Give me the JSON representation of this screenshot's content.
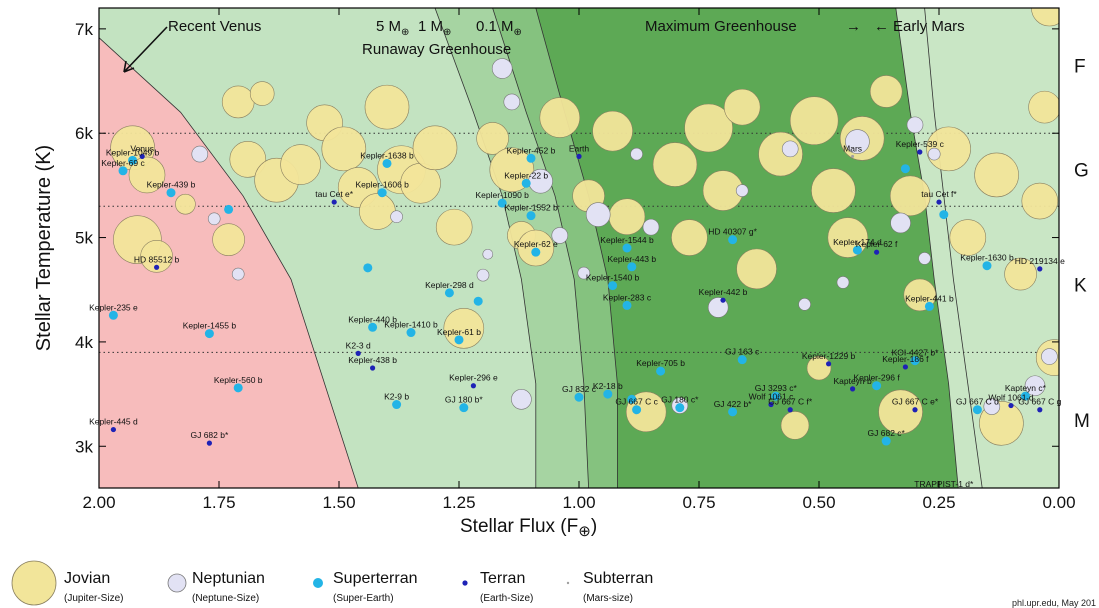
{
  "chart_data": {
    "type": "scatter",
    "xlabel": "Stellar Flux (F",
    "xlabel_symbol": "⊕",
    "ylabel": "Stellar Temperature (K)",
    "xlim": [
      2.0,
      0.0
    ],
    "ylim": [
      2600,
      7200
    ],
    "x_axis_reversed": true,
    "x_ticks": [
      "2.00",
      "1.75",
      "1.50",
      "1.25",
      "1.00",
      "0.75",
      "0.50",
      "0.25",
      "0.00"
    ],
    "y_ticks": [
      "3k",
      "4k",
      "5k",
      "6k",
      "7k"
    ],
    "spectral_classes": [
      {
        "label": "F",
        "temp": 6650
      },
      {
        "label": "G",
        "temp": 5650
      },
      {
        "label": "K",
        "temp": 4550
      },
      {
        "label": "M",
        "temp": 3250
      }
    ],
    "dotted_temperature_lines": [
      6000,
      5300,
      3900
    ],
    "zone_colors": {
      "too_hot": "#f7bcbc",
      "optimistic_inner": "#c3e3c1",
      "band_5M": "#a6d4a2",
      "band_1M": "#85c27f",
      "conservative": "#5da955",
      "maximum_greenhouse": "#c9e6c5",
      "too_cold": "#bbbcf3"
    },
    "zone_annotations": {
      "recent_venus": "Recent Venus",
      "runaway_masses": "5 M",
      "one_m": "1 M",
      "point_one_m": "0.1 M",
      "runaway_greenhouse": "Runaway Greenhouse",
      "maximum_greenhouse": "Maximum Greenhouse",
      "early_mars": "Early Mars",
      "arrow_right": "→",
      "arrow_left": "←",
      "earth_symbol": "⊕"
    },
    "series": [
      {
        "name": "Jovian",
        "sublabel": "(Jupiter-Size)",
        "color": "#f2e59a"
      },
      {
        "name": "Neptunian",
        "sublabel": "(Neptune-Size)",
        "color": "#e2e2f4"
      },
      {
        "name": "Superterran",
        "sublabel": "(Super-Earth)",
        "color": "#23b4e6"
      },
      {
        "name": "Terran",
        "sublabel": "(Earth-Size)",
        "color": "#1e22b6"
      },
      {
        "name": "Subterran",
        "sublabel": "(Mars-size)",
        "color": "#a0a0a0"
      }
    ],
    "labeled_planets": [
      {
        "name": "Venus",
        "x": 1.91,
        "t": 5778,
        "type": "Terran"
      },
      {
        "name": "Kepler-1049 b",
        "x": 1.93,
        "t": 5740,
        "type": "Superterran"
      },
      {
        "name": "Kepler-69 c",
        "x": 1.95,
        "t": 5640,
        "type": "Superterran"
      },
      {
        "name": "Kepler-439 b",
        "x": 1.85,
        "t": 5430,
        "type": "Superterran"
      },
      {
        "name": "HD 85512 b",
        "x": 1.88,
        "t": 4715,
        "type": "Terran"
      },
      {
        "name": "Kepler-235 e",
        "x": 1.97,
        "t": 4255,
        "type": "Superterran"
      },
      {
        "name": "Kepler-1455 b",
        "x": 1.77,
        "t": 4080,
        "type": "Superterran"
      },
      {
        "name": "Kepler-560 b",
        "x": 1.71,
        "t": 3560,
        "type": "Superterran"
      },
      {
        "name": "Kepler-445 d",
        "x": 1.97,
        "t": 3160,
        "type": "Terran"
      },
      {
        "name": "GJ 682 b*",
        "x": 1.77,
        "t": 3030,
        "type": "Terran"
      },
      {
        "name": "tau Cet e*",
        "x": 1.51,
        "t": 5340,
        "type": "Terran"
      },
      {
        "name": "Kepler-1638 b",
        "x": 1.4,
        "t": 5710,
        "type": "Superterran"
      },
      {
        "name": "Kepler-1606 b",
        "x": 1.41,
        "t": 5430,
        "type": "Superterran"
      },
      {
        "name": "Kepler-298 d",
        "x": 1.27,
        "t": 4470,
        "type": "Superterran"
      },
      {
        "name": "Kepler-440 b",
        "x": 1.43,
        "t": 4140,
        "type": "Superterran"
      },
      {
        "name": "Kepler-1410 b",
        "x": 1.35,
        "t": 4090,
        "type": "Superterran"
      },
      {
        "name": "Kepler-61 b",
        "x": 1.25,
        "t": 4020,
        "type": "Superterran"
      },
      {
        "name": "K2-3 d",
        "x": 1.46,
        "t": 3890,
        "type": "Terran"
      },
      {
        "name": "Kepler-438 b",
        "x": 1.43,
        "t": 3750,
        "type": "Terran"
      },
      {
        "name": "K2-9 b",
        "x": 1.38,
        "t": 3400,
        "type": "Superterran"
      },
      {
        "name": "GJ 180 b*",
        "x": 1.24,
        "t": 3370,
        "type": "Superterran"
      },
      {
        "name": "Kepler-296 e",
        "x": 1.22,
        "t": 3580,
        "type": "Terran"
      },
      {
        "name": "Kepler-1090 b",
        "x": 1.16,
        "t": 5330,
        "type": "Superterran"
      },
      {
        "name": "Kepler-452 b",
        "x": 1.1,
        "t": 5760,
        "type": "Superterran"
      },
      {
        "name": "Kepler-22 b",
        "x": 1.11,
        "t": 5520,
        "type": "Superterran"
      },
      {
        "name": "Kepler-1552 b",
        "x": 1.1,
        "t": 5210,
        "type": "Superterran"
      },
      {
        "name": "Earth",
        "x": 1.0,
        "t": 5778,
        "type": "Terran"
      },
      {
        "name": "Kepler-62 e",
        "x": 1.09,
        "t": 4860,
        "type": "Superterran"
      },
      {
        "name": "Kepler-1544 b",
        "x": 0.9,
        "t": 4900,
        "type": "Superterran"
      },
      {
        "name": "Kepler-443 b",
        "x": 0.89,
        "t": 4720,
        "type": "Superterran"
      },
      {
        "name": "Kepler-1540 b",
        "x": 0.93,
        "t": 4540,
        "type": "Superterran"
      },
      {
        "name": "Kepler-283 c",
        "x": 0.9,
        "t": 4350,
        "type": "Superterran"
      },
      {
        "name": "Kepler-705 b",
        "x": 0.83,
        "t": 3720,
        "type": "Superterran"
      },
      {
        "name": "K2-18 b",
        "x": 0.94,
        "t": 3500,
        "type": "Superterran"
      },
      {
        "name": "GJ 832 c",
        "x": 1.0,
        "t": 3470,
        "type": "Superterran"
      },
      {
        "name": "GJ 667 C c",
        "x": 0.88,
        "t": 3350,
        "type": "Superterran"
      },
      {
        "name": "GJ 180 c*",
        "x": 0.79,
        "t": 3370,
        "type": "Superterran"
      },
      {
        "name": "HD 40307 g*",
        "x": 0.68,
        "t": 4980,
        "type": "Superterran"
      },
      {
        "name": "Kepler-442 b",
        "x": 0.7,
        "t": 4400,
        "type": "Terran"
      },
      {
        "name": "GJ 163 c",
        "x": 0.66,
        "t": 3830,
        "type": "Superterran"
      },
      {
        "name": "GJ 422 b*",
        "x": 0.68,
        "t": 3330,
        "type": "Superterran"
      },
      {
        "name": "GJ 3293 c*",
        "x": 0.59,
        "t": 3480,
        "type": "Superterran"
      },
      {
        "name": "Wolf 1061 c",
        "x": 0.6,
        "t": 3400,
        "type": "Terran"
      },
      {
        "name": "GJ 667 C f*",
        "x": 0.56,
        "t": 3350,
        "type": "Terran"
      },
      {
        "name": "Kepler-1229 b",
        "x": 0.48,
        "t": 3790,
        "type": "Terran"
      },
      {
        "name": "Kapteyn b",
        "x": 0.43,
        "t": 3550,
        "type": "Terran"
      },
      {
        "name": "Kepler-296 f",
        "x": 0.38,
        "t": 3580,
        "type": "Superterran"
      },
      {
        "name": "GJ 667 C e*",
        "x": 0.3,
        "t": 3350,
        "type": "Terran"
      },
      {
        "name": "GJ 682 c*",
        "x": 0.36,
        "t": 3050,
        "type": "Superterran"
      },
      {
        "name": "Kepler-186 f",
        "x": 0.32,
        "t": 3760,
        "type": "Terran"
      },
      {
        "name": "KOI-4427 b*",
        "x": 0.3,
        "t": 3820,
        "type": "Superterran"
      },
      {
        "name": "TRAPPIST-1 d*",
        "x": 0.24,
        "t": 2560,
        "type": "Terran"
      },
      {
        "name": "Mars",
        "x": 0.43,
        "t": 5778,
        "type": "Subterran"
      },
      {
        "name": "Kepler-539 c",
        "x": 0.29,
        "t": 5820,
        "type": "Terran"
      },
      {
        "name": "tau Cet f*",
        "x": 0.25,
        "t": 5340,
        "type": "Terran"
      },
      {
        "name": "Kepler-174 d",
        "x": 0.42,
        "t": 4880,
        "type": "Superterran"
      },
      {
        "name": "Kepler-62 f",
        "x": 0.38,
        "t": 4860,
        "type": "Terran"
      },
      {
        "name": "Kepler-1630 b",
        "x": 0.15,
        "t": 4730,
        "type": "Superterran"
      },
      {
        "name": "HD 219134 e",
        "x": 0.04,
        "t": 4700,
        "type": "Terran"
      },
      {
        "name": "Kepler-441 b",
        "x": 0.27,
        "t": 4340,
        "type": "Superterran"
      },
      {
        "name": "Kapteyn c*",
        "x": 0.07,
        "t": 3480,
        "type": "Superterran"
      },
      {
        "name": "Wolf 1061 d",
        "x": 0.1,
        "t": 3390,
        "type": "Terran"
      },
      {
        "name": "GJ 667 C d",
        "x": 0.17,
        "t": 3350,
        "type": "Superterran"
      },
      {
        "name": "GJ 667 C g",
        "x": 0.04,
        "t": 3350,
        "type": "Terran"
      }
    ],
    "jovian_planets": [
      {
        "x": 1.93,
        "t": 5860,
        "r": 22
      },
      {
        "x": 1.9,
        "t": 5600,
        "r": 18
      },
      {
        "x": 1.92,
        "t": 4980,
        "r": 24
      },
      {
        "x": 1.88,
        "t": 4820,
        "r": 16
      },
      {
        "x": 1.82,
        "t": 5320,
        "r": 10
      },
      {
        "x": 1.73,
        "t": 4980,
        "r": 16
      },
      {
        "x": 1.71,
        "t": 6300,
        "r": 16
      },
      {
        "x": 1.69,
        "t": 5750,
        "r": 18
      },
      {
        "x": 1.66,
        "t": 6380,
        "r": 12
      },
      {
        "x": 1.63,
        "t": 5550,
        "r": 22
      },
      {
        "x": 1.58,
        "t": 5700,
        "r": 20
      },
      {
        "x": 1.53,
        "t": 6100,
        "r": 18
      },
      {
        "x": 1.49,
        "t": 5850,
        "r": 22
      },
      {
        "x": 1.46,
        "t": 5480,
        "r": 20
      },
      {
        "x": 1.42,
        "t": 5250,
        "r": 18
      },
      {
        "x": 1.4,
        "t": 6250,
        "r": 22
      },
      {
        "x": 1.37,
        "t": 5650,
        "r": 24
      },
      {
        "x": 1.33,
        "t": 5520,
        "r": 20
      },
      {
        "x": 1.3,
        "t": 5860,
        "r": 22
      },
      {
        "x": 1.26,
        "t": 5100,
        "r": 18
      },
      {
        "x": 1.24,
        "t": 4130,
        "r": 20
      },
      {
        "x": 1.18,
        "t": 5950,
        "r": 16
      },
      {
        "x": 1.14,
        "t": 5650,
        "r": 22
      },
      {
        "x": 1.12,
        "t": 5020,
        "r": 14
      },
      {
        "x": 1.09,
        "t": 4900,
        "r": 18
      },
      {
        "x": 1.04,
        "t": 6150,
        "r": 20
      },
      {
        "x": 0.98,
        "t": 5400,
        "r": 16
      },
      {
        "x": 0.93,
        "t": 6020,
        "r": 20
      },
      {
        "x": 0.9,
        "t": 5200,
        "r": 18
      },
      {
        "x": 0.86,
        "t": 3330,
        "r": 20
      },
      {
        "x": 0.8,
        "t": 5700,
        "r": 22
      },
      {
        "x": 0.77,
        "t": 5000,
        "r": 18
      },
      {
        "x": 0.73,
        "t": 6050,
        "r": 24
      },
      {
        "x": 0.7,
        "t": 5450,
        "r": 20
      },
      {
        "x": 0.66,
        "t": 6250,
        "r": 18
      },
      {
        "x": 0.63,
        "t": 4700,
        "r": 20
      },
      {
        "x": 0.58,
        "t": 5800,
        "r": 22
      },
      {
        "x": 0.55,
        "t": 3200,
        "r": 14
      },
      {
        "x": 0.51,
        "t": 6120,
        "r": 24
      },
      {
        "x": 0.5,
        "t": 3750,
        "r": 12
      },
      {
        "x": 0.47,
        "t": 5450,
        "r": 22
      },
      {
        "x": 0.44,
        "t": 5000,
        "r": 20
      },
      {
        "x": 0.41,
        "t": 5950,
        "r": 22
      },
      {
        "x": 0.36,
        "t": 6400,
        "r": 16
      },
      {
        "x": 0.33,
        "t": 3330,
        "r": 22
      },
      {
        "x": 0.31,
        "t": 5400,
        "r": 20
      },
      {
        "x": 0.29,
        "t": 4450,
        "r": 16
      },
      {
        "x": 0.23,
        "t": 5850,
        "r": 22
      },
      {
        "x": 0.19,
        "t": 5000,
        "r": 18
      },
      {
        "x": 0.13,
        "t": 5600,
        "r": 22
      },
      {
        "x": 0.12,
        "t": 3220,
        "r": 22
      },
      {
        "x": 0.08,
        "t": 4650,
        "r": 16
      },
      {
        "x": 0.04,
        "t": 5350,
        "r": 18
      },
      {
        "x": 0.03,
        "t": 6250,
        "r": 16
      },
      {
        "x": 0.02,
        "t": 7200,
        "r": 18
      },
      {
        "x": 0.01,
        "t": 3850,
        "r": 18
      }
    ],
    "neptunian_planets": [
      {
        "x": 1.79,
        "t": 5800,
        "r": 8
      },
      {
        "x": 1.71,
        "t": 4650,
        "r": 6
      },
      {
        "x": 1.76,
        "t": 5180,
        "r": 6
      },
      {
        "x": 1.38,
        "t": 5200,
        "r": 6
      },
      {
        "x": 1.2,
        "t": 4640,
        "r": 6
      },
      {
        "x": 1.19,
        "t": 4840,
        "r": 5
      },
      {
        "x": 1.16,
        "t": 6620,
        "r": 10
      },
      {
        "x": 1.14,
        "t": 6300,
        "r": 8
      },
      {
        "x": 1.12,
        "t": 3450,
        "r": 10
      },
      {
        "x": 1.08,
        "t": 5540,
        "r": 12
      },
      {
        "x": 1.04,
        "t": 5020,
        "r": 8
      },
      {
        "x": 0.99,
        "t": 4660,
        "r": 6
      },
      {
        "x": 0.96,
        "t": 5220,
        "r": 12
      },
      {
        "x": 0.88,
        "t": 5800,
        "r": 6
      },
      {
        "x": 0.85,
        "t": 5100,
        "r": 8
      },
      {
        "x": 0.79,
        "t": 3390,
        "r": 8
      },
      {
        "x": 0.71,
        "t": 4330,
        "r": 10
      },
      {
        "x": 0.66,
        "t": 5450,
        "r": 6
      },
      {
        "x": 0.53,
        "t": 4360,
        "r": 6
      },
      {
        "x": 0.56,
        "t": 5850,
        "r": 8
      },
      {
        "x": 0.45,
        "t": 4570,
        "r": 6
      },
      {
        "x": 0.42,
        "t": 5920,
        "r": 12
      },
      {
        "x": 0.33,
        "t": 5140,
        "r": 10
      },
      {
        "x": 0.3,
        "t": 6080,
        "r": 8
      },
      {
        "x": 0.28,
        "t": 4800,
        "r": 6
      },
      {
        "x": 0.26,
        "t": 5800,
        "r": 6
      },
      {
        "x": 0.14,
        "t": 3380,
        "r": 8
      },
      {
        "x": 0.05,
        "t": 3580,
        "r": 10
      },
      {
        "x": 0.02,
        "t": 3860,
        "r": 8
      }
    ],
    "unlabeled_superterrans": [
      {
        "x": 1.73,
        "t": 5270
      },
      {
        "x": 1.44,
        "t": 4710
      },
      {
        "x": 1.21,
        "t": 4390
      },
      {
        "x": 0.89,
        "t": 3450
      },
      {
        "x": 0.32,
        "t": 5660
      },
      {
        "x": 0.24,
        "t": 5220
      }
    ],
    "credit": "phl.upr.edu, May 201"
  }
}
